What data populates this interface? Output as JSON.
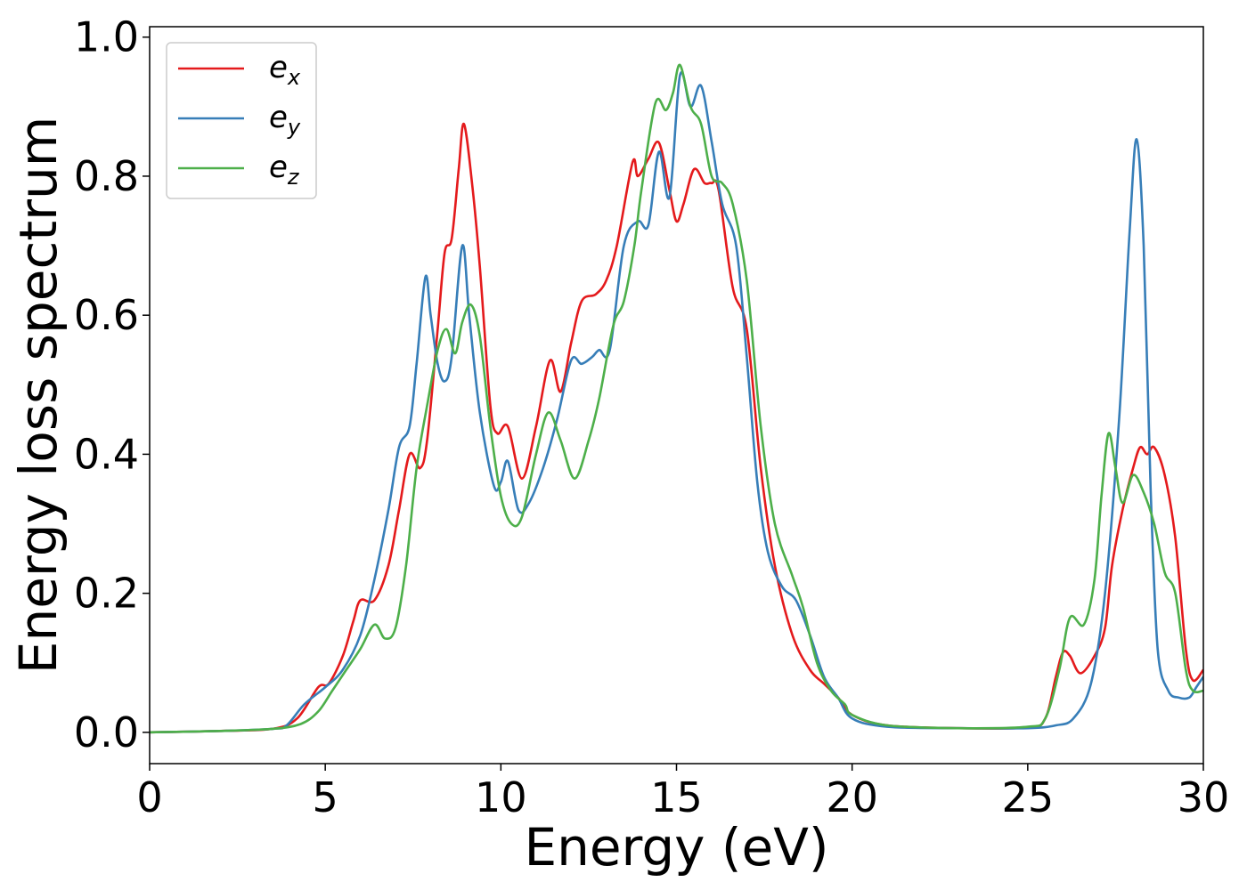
{
  "chart_data": {
    "type": "line",
    "title": "",
    "xlabel": "Energy (eV)",
    "ylabel": "Energy loss spectrum",
    "xlim": [
      0,
      30
    ],
    "ylim": [
      -0.045,
      1.015
    ],
    "grid": false,
    "legend_position": "top-left",
    "xticks": [
      0,
      5,
      10,
      15,
      20,
      25,
      30
    ],
    "xtick_labels": [
      "0",
      "5",
      "10",
      "15",
      "20",
      "25",
      "30"
    ],
    "yticks": [
      0.0,
      0.2,
      0.4,
      0.6,
      0.8,
      1.0
    ],
    "ytick_labels": [
      "0.0",
      "0.2",
      "0.4",
      "0.6",
      "0.8",
      "1.0"
    ],
    "series": [
      {
        "name": "e",
        "subscript": "x",
        "color": "#e41a1c",
        "points": [
          [
            0,
            0
          ],
          [
            2,
            0.002
          ],
          [
            3.5,
            0.005
          ],
          [
            4.2,
            0.02
          ],
          [
            4.8,
            0.065
          ],
          [
            5.1,
            0.07
          ],
          [
            5.5,
            0.11
          ],
          [
            5.8,
            0.16
          ],
          [
            6.0,
            0.19
          ],
          [
            6.4,
            0.19
          ],
          [
            6.8,
            0.24
          ],
          [
            7.1,
            0.32
          ],
          [
            7.4,
            0.4
          ],
          [
            7.7,
            0.38
          ],
          [
            7.9,
            0.42
          ],
          [
            8.2,
            0.58
          ],
          [
            8.4,
            0.69
          ],
          [
            8.6,
            0.71
          ],
          [
            8.8,
            0.81
          ],
          [
            8.95,
            0.875
          ],
          [
            9.2,
            0.78
          ],
          [
            9.4,
            0.67
          ],
          [
            9.7,
            0.47
          ],
          [
            9.9,
            0.43
          ],
          [
            10.2,
            0.44
          ],
          [
            10.6,
            0.365
          ],
          [
            11.0,
            0.44
          ],
          [
            11.4,
            0.535
          ],
          [
            11.7,
            0.49
          ],
          [
            12.0,
            0.56
          ],
          [
            12.3,
            0.62
          ],
          [
            12.7,
            0.63
          ],
          [
            13.0,
            0.65
          ],
          [
            13.3,
            0.7
          ],
          [
            13.75,
            0.82
          ],
          [
            13.9,
            0.8
          ],
          [
            14.2,
            0.825
          ],
          [
            14.5,
            0.848
          ],
          [
            14.8,
            0.78
          ],
          [
            15.0,
            0.735
          ],
          [
            15.2,
            0.76
          ],
          [
            15.5,
            0.81
          ],
          [
            15.8,
            0.79
          ],
          [
            16.0,
            0.79
          ],
          [
            16.2,
            0.78
          ],
          [
            16.6,
            0.64
          ],
          [
            17.0,
            0.58
          ],
          [
            17.4,
            0.38
          ],
          [
            17.8,
            0.24
          ],
          [
            18.3,
            0.14
          ],
          [
            18.8,
            0.09
          ],
          [
            19.2,
            0.07
          ],
          [
            19.6,
            0.05
          ],
          [
            20,
            0.025
          ],
          [
            21,
            0.01
          ],
          [
            23,
            0.006
          ],
          [
            25,
            0.007
          ],
          [
            25.5,
            0.02
          ],
          [
            25.8,
            0.08
          ],
          [
            26.0,
            0.115
          ],
          [
            26.2,
            0.11
          ],
          [
            26.5,
            0.085
          ],
          [
            26.9,
            0.11
          ],
          [
            27.2,
            0.15
          ],
          [
            27.4,
            0.24
          ],
          [
            27.7,
            0.32
          ],
          [
            28.0,
            0.38
          ],
          [
            28.2,
            0.41
          ],
          [
            28.4,
            0.4
          ],
          [
            28.6,
            0.41
          ],
          [
            28.9,
            0.37
          ],
          [
            29.2,
            0.28
          ],
          [
            29.5,
            0.12
          ],
          [
            29.7,
            0.075
          ],
          [
            30,
            0.09
          ]
        ]
      },
      {
        "name": "e",
        "subscript": "y",
        "color": "#377eb8",
        "points": [
          [
            0,
            0
          ],
          [
            2,
            0.002
          ],
          [
            3.5,
            0.005
          ],
          [
            3.9,
            0.01
          ],
          [
            4.4,
            0.04
          ],
          [
            5.0,
            0.065
          ],
          [
            5.5,
            0.09
          ],
          [
            6.0,
            0.14
          ],
          [
            6.4,
            0.22
          ],
          [
            6.8,
            0.32
          ],
          [
            7.1,
            0.41
          ],
          [
            7.4,
            0.44
          ],
          [
            7.6,
            0.53
          ],
          [
            7.85,
            0.655
          ],
          [
            8.0,
            0.6
          ],
          [
            8.2,
            0.53
          ],
          [
            8.4,
            0.505
          ],
          [
            8.6,
            0.54
          ],
          [
            8.9,
            0.7
          ],
          [
            9.1,
            0.6
          ],
          [
            9.4,
            0.46
          ],
          [
            9.8,
            0.355
          ],
          [
            10.0,
            0.36
          ],
          [
            10.2,
            0.39
          ],
          [
            10.5,
            0.32
          ],
          [
            10.8,
            0.33
          ],
          [
            11.2,
            0.38
          ],
          [
            11.6,
            0.45
          ],
          [
            12.0,
            0.535
          ],
          [
            12.3,
            0.53
          ],
          [
            12.6,
            0.54
          ],
          [
            12.8,
            0.55
          ],
          [
            13.1,
            0.55
          ],
          [
            13.5,
            0.7
          ],
          [
            13.9,
            0.735
          ],
          [
            14.2,
            0.73
          ],
          [
            14.5,
            0.835
          ],
          [
            14.8,
            0.77
          ],
          [
            15.1,
            0.945
          ],
          [
            15.4,
            0.9
          ],
          [
            15.7,
            0.93
          ],
          [
            16.0,
            0.85
          ],
          [
            16.3,
            0.76
          ],
          [
            16.7,
            0.7
          ],
          [
            17.0,
            0.54
          ],
          [
            17.3,
            0.36
          ],
          [
            17.6,
            0.26
          ],
          [
            18.0,
            0.21
          ],
          [
            18.4,
            0.19
          ],
          [
            18.8,
            0.14
          ],
          [
            19.2,
            0.08
          ],
          [
            19.6,
            0.05
          ],
          [
            20,
            0.02
          ],
          [
            21,
            0.008
          ],
          [
            23,
            0.006
          ],
          [
            25,
            0.006
          ],
          [
            25.8,
            0.01
          ],
          [
            26.3,
            0.02
          ],
          [
            26.8,
            0.07
          ],
          [
            27.2,
            0.2
          ],
          [
            27.6,
            0.45
          ],
          [
            27.9,
            0.72
          ],
          [
            28.1,
            0.853
          ],
          [
            28.3,
            0.7
          ],
          [
            28.5,
            0.35
          ],
          [
            28.7,
            0.12
          ],
          [
            29.0,
            0.06
          ],
          [
            29.3,
            0.05
          ],
          [
            29.6,
            0.05
          ],
          [
            29.8,
            0.065
          ],
          [
            30,
            0.08
          ]
        ]
      },
      {
        "name": "e",
        "subscript": "z",
        "color": "#4daf4a",
        "points": [
          [
            0,
            0
          ],
          [
            2,
            0.002
          ],
          [
            3.5,
            0.005
          ],
          [
            4.3,
            0.012
          ],
          [
            4.8,
            0.03
          ],
          [
            5.2,
            0.06
          ],
          [
            5.6,
            0.09
          ],
          [
            6.0,
            0.12
          ],
          [
            6.4,
            0.155
          ],
          [
            6.7,
            0.135
          ],
          [
            7.0,
            0.15
          ],
          [
            7.3,
            0.24
          ],
          [
            7.6,
            0.38
          ],
          [
            7.9,
            0.47
          ],
          [
            8.2,
            0.55
          ],
          [
            8.45,
            0.58
          ],
          [
            8.7,
            0.545
          ],
          [
            8.9,
            0.59
          ],
          [
            9.15,
            0.615
          ],
          [
            9.4,
            0.57
          ],
          [
            9.7,
            0.44
          ],
          [
            10.0,
            0.34
          ],
          [
            10.3,
            0.3
          ],
          [
            10.6,
            0.31
          ],
          [
            11.0,
            0.4
          ],
          [
            11.35,
            0.46
          ],
          [
            11.7,
            0.42
          ],
          [
            12.1,
            0.365
          ],
          [
            12.5,
            0.42
          ],
          [
            12.8,
            0.48
          ],
          [
            13.2,
            0.585
          ],
          [
            13.5,
            0.62
          ],
          [
            13.8,
            0.7
          ],
          [
            14.0,
            0.78
          ],
          [
            14.4,
            0.905
          ],
          [
            14.7,
            0.895
          ],
          [
            14.9,
            0.92
          ],
          [
            15.1,
            0.96
          ],
          [
            15.4,
            0.9
          ],
          [
            15.7,
            0.875
          ],
          [
            16.0,
            0.8
          ],
          [
            16.3,
            0.79
          ],
          [
            16.6,
            0.76
          ],
          [
            17.0,
            0.65
          ],
          [
            17.4,
            0.44
          ],
          [
            17.8,
            0.3
          ],
          [
            18.3,
            0.225
          ],
          [
            18.6,
            0.18
          ],
          [
            19.0,
            0.1
          ],
          [
            19.4,
            0.06
          ],
          [
            19.8,
            0.04
          ],
          [
            20,
            0.025
          ],
          [
            21,
            0.01
          ],
          [
            23,
            0.006
          ],
          [
            25,
            0.008
          ],
          [
            25.5,
            0.02
          ],
          [
            25.9,
            0.09
          ],
          [
            26.2,
            0.165
          ],
          [
            26.6,
            0.155
          ],
          [
            26.9,
            0.22
          ],
          [
            27.1,
            0.34
          ],
          [
            27.3,
            0.43
          ],
          [
            27.5,
            0.38
          ],
          [
            27.7,
            0.33
          ],
          [
            28.0,
            0.37
          ],
          [
            28.3,
            0.345
          ],
          [
            28.6,
            0.3
          ],
          [
            28.9,
            0.23
          ],
          [
            29.2,
            0.2
          ],
          [
            29.5,
            0.09
          ],
          [
            29.7,
            0.06
          ],
          [
            30,
            0.06
          ]
        ]
      }
    ]
  }
}
